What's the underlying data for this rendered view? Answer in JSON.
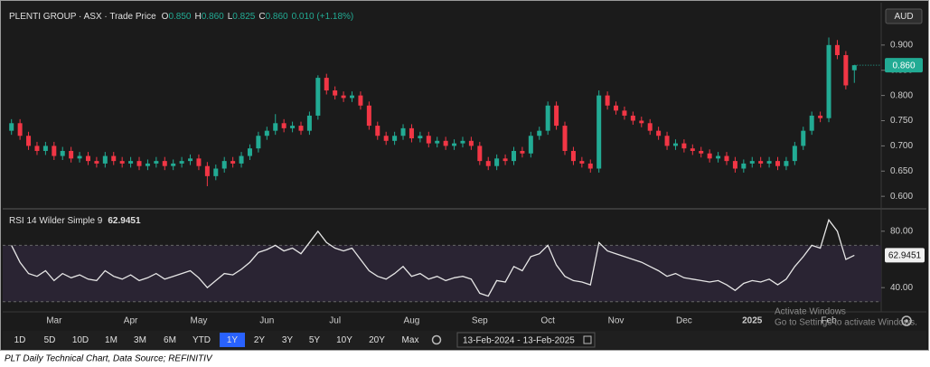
{
  "chart_data": {
    "type": "candlestick",
    "header": {
      "symbol": "PLENTI GROUP · ASX · Trade Price",
      "ohlc": [
        {
          "key": "O",
          "value": "0.850"
        },
        {
          "key": "H",
          "value": "0.860"
        },
        {
          "key": "L",
          "value": "0.825"
        },
        {
          "key": "C",
          "value": "0.860"
        }
      ],
      "change": "0.010 (+1.18%)"
    },
    "currency": "AUD",
    "last_label": "0.860",
    "up_color": "#22ab94",
    "down_color": "#f23645",
    "categories": [
      null,
      null,
      null,
      null,
      null,
      "Mar",
      null,
      null,
      null,
      null,
      null,
      null,
      null,
      null,
      "Apr",
      null,
      null,
      null,
      null,
      null,
      null,
      null,
      "May",
      null,
      null,
      null,
      null,
      null,
      null,
      null,
      "Jun",
      null,
      null,
      null,
      null,
      null,
      null,
      null,
      "Jul",
      null,
      null,
      null,
      null,
      null,
      null,
      null,
      null,
      "Aug",
      null,
      null,
      null,
      null,
      null,
      null,
      null,
      "Sep",
      null,
      null,
      null,
      null,
      null,
      null,
      null,
      "Oct",
      null,
      null,
      null,
      null,
      null,
      null,
      null,
      "Nov",
      null,
      null,
      null,
      null,
      null,
      null,
      null,
      "Dec",
      null,
      null,
      null,
      null,
      null,
      null,
      null,
      "2025",
      null,
      null,
      null,
      null,
      null,
      null,
      null,
      null,
      "Feb",
      null,
      null,
      null
    ],
    "open": [
      0.73,
      0.745,
      0.72,
      0.7,
      0.69,
      0.7,
      0.68,
      0.69,
      0.675,
      0.68,
      0.67,
      0.665,
      0.68,
      0.67,
      0.665,
      0.67,
      0.66,
      0.665,
      0.67,
      0.66,
      0.665,
      0.67,
      0.675,
      0.66,
      0.64,
      0.655,
      0.67,
      0.665,
      0.68,
      0.695,
      0.72,
      0.73,
      0.745,
      0.735,
      0.74,
      0.73,
      0.76,
      0.835,
      0.81,
      0.8,
      0.795,
      0.8,
      0.78,
      0.74,
      0.72,
      0.71,
      0.72,
      0.735,
      0.715,
      0.72,
      0.705,
      0.71,
      0.7,
      0.705,
      0.71,
      0.7,
      0.67,
      0.66,
      0.675,
      0.67,
      0.69,
      0.685,
      0.72,
      0.73,
      0.78,
      0.74,
      0.69,
      0.67,
      0.665,
      0.655,
      0.8,
      0.78,
      0.77,
      0.76,
      0.75,
      0.745,
      0.73,
      0.72,
      0.7,
      0.705,
      0.695,
      0.69,
      0.685,
      0.675,
      0.68,
      0.67,
      0.655,
      0.665,
      0.67,
      0.665,
      0.67,
      0.66,
      0.67,
      0.7,
      0.73,
      0.76,
      0.755,
      0.9,
      0.88,
      0.85
    ],
    "high": [
      0.753,
      0.753,
      0.728,
      0.708,
      0.708,
      0.708,
      0.698,
      0.698,
      0.688,
      0.688,
      0.678,
      0.688,
      0.688,
      0.678,
      0.678,
      0.678,
      0.673,
      0.678,
      0.678,
      0.673,
      0.678,
      0.683,
      0.683,
      0.668,
      0.663,
      0.678,
      0.678,
      0.688,
      0.703,
      0.728,
      0.738,
      0.763,
      0.753,
      0.748,
      0.748,
      0.768,
      0.84,
      0.843,
      0.818,
      0.808,
      0.808,
      0.808,
      0.788,
      0.748,
      0.728,
      0.728,
      0.743,
      0.743,
      0.728,
      0.728,
      0.718,
      0.718,
      0.713,
      0.718,
      0.718,
      0.708,
      0.678,
      0.683,
      0.683,
      0.698,
      0.698,
      0.728,
      0.738,
      0.788,
      0.788,
      0.748,
      0.698,
      0.678,
      0.673,
      0.81,
      0.808,
      0.788,
      0.778,
      0.768,
      0.758,
      0.753,
      0.738,
      0.728,
      0.713,
      0.713,
      0.703,
      0.698,
      0.693,
      0.688,
      0.688,
      0.678,
      0.673,
      0.678,
      0.678,
      0.678,
      0.678,
      0.678,
      0.708,
      0.738,
      0.768,
      0.768,
      0.915,
      0.91,
      0.888,
      0.86
    ],
    "low": [
      0.722,
      0.712,
      0.692,
      0.682,
      0.682,
      0.672,
      0.672,
      0.667,
      0.667,
      0.662,
      0.657,
      0.657,
      0.662,
      0.657,
      0.657,
      0.652,
      0.652,
      0.657,
      0.652,
      0.652,
      0.657,
      0.662,
      0.652,
      0.62,
      0.632,
      0.647,
      0.657,
      0.657,
      0.672,
      0.687,
      0.712,
      0.722,
      0.727,
      0.727,
      0.722,
      0.722,
      0.752,
      0.802,
      0.792,
      0.787,
      0.787,
      0.772,
      0.732,
      0.712,
      0.702,
      0.702,
      0.712,
      0.707,
      0.707,
      0.697,
      0.697,
      0.692,
      0.692,
      0.697,
      0.692,
      0.662,
      0.652,
      0.652,
      0.662,
      0.662,
      0.677,
      0.677,
      0.712,
      0.722,
      0.732,
      0.682,
      0.662,
      0.657,
      0.647,
      0.647,
      0.772,
      0.762,
      0.752,
      0.742,
      0.737,
      0.722,
      0.712,
      0.692,
      0.692,
      0.687,
      0.682,
      0.677,
      0.667,
      0.667,
      0.662,
      0.647,
      0.647,
      0.657,
      0.657,
      0.657,
      0.652,
      0.652,
      0.662,
      0.692,
      0.722,
      0.747,
      0.747,
      0.872,
      0.812,
      0.825
    ],
    "close": [
      0.745,
      0.72,
      0.7,
      0.69,
      0.7,
      0.68,
      0.69,
      0.675,
      0.68,
      0.67,
      0.665,
      0.68,
      0.67,
      0.665,
      0.67,
      0.66,
      0.665,
      0.67,
      0.66,
      0.665,
      0.67,
      0.675,
      0.66,
      0.64,
      0.655,
      0.67,
      0.665,
      0.68,
      0.695,
      0.72,
      0.73,
      0.745,
      0.735,
      0.74,
      0.73,
      0.76,
      0.835,
      0.81,
      0.8,
      0.795,
      0.8,
      0.78,
      0.74,
      0.72,
      0.71,
      0.72,
      0.735,
      0.715,
      0.72,
      0.705,
      0.71,
      0.7,
      0.705,
      0.71,
      0.7,
      0.67,
      0.66,
      0.675,
      0.67,
      0.69,
      0.685,
      0.72,
      0.73,
      0.78,
      0.74,
      0.69,
      0.67,
      0.665,
      0.655,
      0.8,
      0.78,
      0.77,
      0.76,
      0.75,
      0.745,
      0.73,
      0.72,
      0.7,
      0.705,
      0.695,
      0.69,
      0.685,
      0.675,
      0.68,
      0.67,
      0.655,
      0.665,
      0.67,
      0.665,
      0.67,
      0.66,
      0.67,
      0.7,
      0.73,
      0.76,
      0.755,
      0.9,
      0.88,
      0.82,
      0.86
    ],
    "ylim": [
      0.577,
      0.975
    ],
    "yticks": [
      {
        "value": 0.6,
        "label": "0.600"
      },
      {
        "value": 0.65,
        "label": "0.650"
      },
      {
        "value": 0.7,
        "label": "0.700"
      },
      {
        "value": 0.75,
        "label": "0.750"
      },
      {
        "value": 0.8,
        "label": "0.800"
      },
      {
        "value": 0.85,
        "label": "0.850"
      },
      {
        "value": 0.9,
        "label": "0.900"
      }
    ],
    "rsi": {
      "type": "line",
      "title": "RSI 14 Wilder Simple 9",
      "color": "#e6e6e6",
      "band_color": "#2a2433",
      "bands": [
        30,
        70
      ],
      "values": [
        70,
        58,
        50,
        48,
        52,
        45,
        50,
        47,
        49,
        46,
        45,
        52,
        48,
        46,
        49,
        45,
        47,
        50,
        46,
        48,
        50,
        52,
        47,
        40,
        45,
        50,
        49,
        53,
        58,
        65,
        67,
        70,
        66,
        68,
        64,
        72,
        80,
        72,
        68,
        66,
        68,
        60,
        52,
        48,
        46,
        50,
        55,
        48,
        50,
        46,
        48,
        45,
        47,
        48,
        46,
        36,
        34,
        45,
        44,
        55,
        52,
        62,
        64,
        70,
        56,
        48,
        45,
        44,
        42,
        72,
        66,
        64,
        62,
        60,
        58,
        55,
        52,
        48,
        50,
        47,
        46,
        45,
        44,
        45,
        42,
        38,
        43,
        45,
        44,
        46,
        42,
        46,
        55,
        62,
        70,
        68,
        88,
        80,
        60,
        62.9451
      ],
      "ylim": [
        24.1,
        94.6
      ],
      "yticks": [
        {
          "value": 40,
          "label": "40.00"
        },
        {
          "value": 80,
          "label": "80.00"
        }
      ]
    }
  },
  "toolbar": {
    "buttons": [
      "1D",
      "5D",
      "10D",
      "1M",
      "3M",
      "6M",
      "YTD",
      "1Y",
      "2Y",
      "3Y",
      "5Y",
      "10Y",
      "20Y",
      "Max"
    ],
    "active": "1Y",
    "range": {
      "from": "13-Feb-2024",
      "separator": "-",
      "to": "13-Feb-2025"
    }
  },
  "watermark": {
    "title": "Activate Windows",
    "subtitle": "Go to Settings to activate Windows."
  },
  "caption": "PLT Daily Technical Chart, Data Source; REFINITIV"
}
